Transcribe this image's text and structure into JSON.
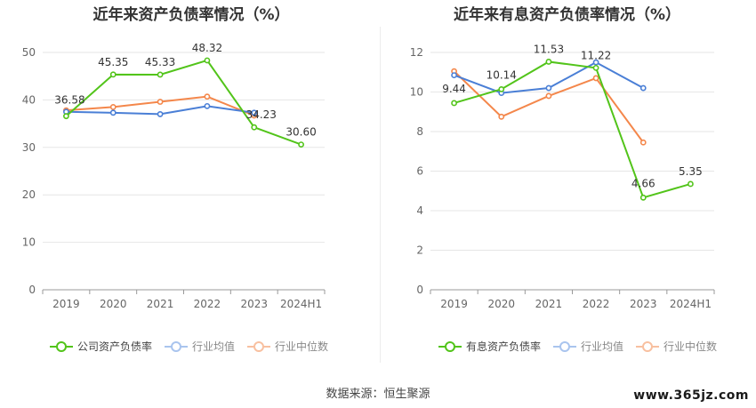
{
  "charts": [
    {
      "title": "近年来资产负债率情况（%）",
      "legend": [
        "公司资产负债率",
        "行业均值",
        "行业中位数"
      ],
      "colors": {
        "primary": "#52c41a",
        "mean": "#4a7fd6",
        "median": "#f4874b"
      }
    },
    {
      "title": "近年来有息资产负债率情况（%）",
      "legend": [
        "有息资产负债率",
        "行业均值",
        "行业中位数"
      ],
      "colors": {
        "primary": "#52c41a",
        "mean": "#4a7fd6",
        "median": "#f4874b"
      }
    }
  ],
  "source": "数据来源：恒生聚源",
  "watermark": "www.365jz.com",
  "chart_data": [
    {
      "type": "line",
      "title": "近年来资产负债率情况（%）",
      "categories": [
        "2019",
        "2020",
        "2021",
        "2022",
        "2023",
        "2024H1"
      ],
      "ylim": [
        0,
        50
      ],
      "yticks": [
        0,
        10,
        20,
        30,
        40,
        50
      ],
      "series": [
        {
          "name": "公司资产负债率",
          "values": [
            36.58,
            45.35,
            45.33,
            48.32,
            34.23,
            30.6
          ],
          "labels": [
            "36.58",
            "45.35",
            "45.33",
            "48.32",
            "34.23",
            "30.60"
          ]
        },
        {
          "name": "行业均值",
          "values": [
            37.5,
            37.3,
            37.0,
            38.7,
            37.3,
            null
          ]
        },
        {
          "name": "行业中位数",
          "values": [
            37.8,
            38.5,
            39.6,
            40.7,
            36.7,
            null
          ]
        }
      ]
    },
    {
      "type": "line",
      "title": "近年来有息资产负债率情况（%）",
      "categories": [
        "2019",
        "2020",
        "2021",
        "2022",
        "2023",
        "2024H1"
      ],
      "ylim": [
        0,
        12
      ],
      "yticks": [
        0,
        2,
        4,
        6,
        8,
        10,
        12
      ],
      "series": [
        {
          "name": "有息资产负债率",
          "values": [
            9.44,
            10.14,
            11.53,
            11.22,
            4.66,
            5.35
          ],
          "labels": [
            "9.44",
            "10.14",
            "11.53",
            "11.22",
            "4.66",
            "5.35"
          ]
        },
        {
          "name": "行业均值",
          "values": [
            10.85,
            9.95,
            10.2,
            11.5,
            10.2,
            null
          ]
        },
        {
          "name": "行业中位数",
          "values": [
            11.05,
            8.75,
            9.8,
            10.7,
            7.45,
            null
          ]
        }
      ]
    }
  ]
}
